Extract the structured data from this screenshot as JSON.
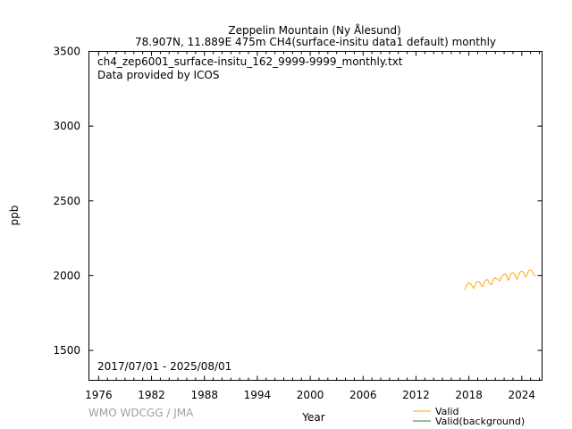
{
  "chart_data": {
    "type": "line",
    "title": "Zeppelin Mountain (Ny Ålesund)",
    "subtitle": "78.907N, 11.889E 475m    CH4(surface-insitu data1 default) monthly",
    "file_label": "ch4_zep6001_surface-insitu_162_9999-9999_monthly.txt",
    "provider": "Data provided by ICOS",
    "period": "2017/07/01 - 2025/08/01",
    "xlabel": "Year",
    "ylabel": "ppb",
    "xlim": [
      1974.9,
      2026.3
    ],
    "ylim": [
      1300,
      3500
    ],
    "xticks": [
      "1976",
      "1982",
      "1988",
      "1994",
      "2000",
      "2006",
      "2012",
      "2018",
      "2024"
    ],
    "yticks": [
      "1500",
      "2000",
      "2500",
      "3000",
      "3500"
    ],
    "grid": false,
    "legend_position": "bottom-right",
    "credit": "WMO WDCGG / JMA",
    "series": [
      {
        "name": "Valid",
        "color": "#ffa500",
        "start": "2017-07",
        "values": [
          1905,
          1910,
          1925,
          1935,
          1945,
          1950,
          1952,
          1950,
          1945,
          1940,
          1935,
          1928,
          1920,
          1915,
          1932,
          1945,
          1955,
          1960,
          1962,
          1960,
          1958,
          1950,
          1945,
          1935,
          1930,
          1928,
          1945,
          1955,
          1965,
          1970,
          1975,
          1972,
          1968,
          1960,
          1950,
          1945,
          1940,
          1945,
          1955,
          1970,
          1978,
          1982,
          1985,
          1982,
          1980,
          1978,
          1975,
          1968,
          1965,
          1975,
          1985,
          1995,
          2000,
          2005,
          2010,
          2012,
          2008,
          2000,
          1990,
          1978,
          1970,
          1985,
          2000,
          2010,
          2015,
          2018,
          2018,
          2015,
          2010,
          2000,
          1990,
          1980,
          1978,
          1992,
          2008,
          2018,
          2025,
          2028,
          2030,
          2028,
          2022,
          2012,
          2002,
          1995,
          1992,
          2005,
          2018,
          2028,
          2035,
          2038,
          2038,
          2035,
          2030,
          2020,
          2010,
          2000,
          1998,
          2002
        ]
      },
      {
        "name": "Valid(background)",
        "color": "#2e7d4f",
        "start": "2017-07",
        "values": []
      }
    ]
  }
}
